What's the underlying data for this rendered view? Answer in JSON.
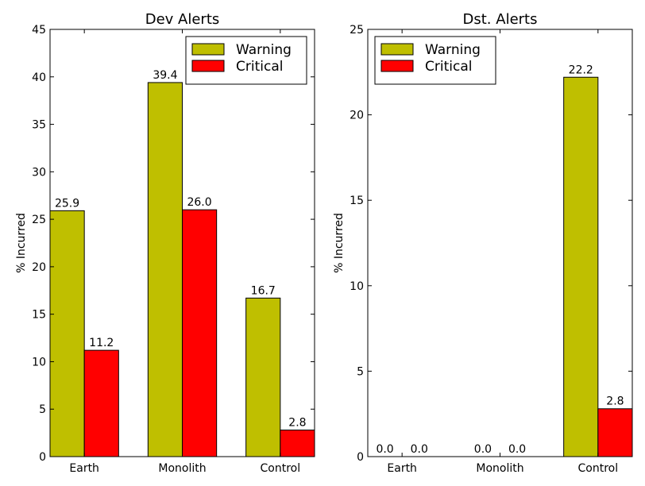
{
  "chart_data": [
    {
      "type": "bar",
      "title": "Dev Alerts",
      "xlabel": "",
      "ylabel": "% Incurred",
      "categories": [
        "Earth",
        "Monolith",
        "Control"
      ],
      "series": [
        {
          "name": "Warning",
          "color": "#bfbf00",
          "values": [
            25.9,
            39.4,
            16.7
          ],
          "labels": [
            "25.9",
            "39.4",
            "16.7"
          ]
        },
        {
          "name": "Critical",
          "color": "#ff0000",
          "values": [
            11.2,
            26.0,
            2.8
          ],
          "labels": [
            "11.2",
            "26.0",
            "2.8"
          ]
        }
      ],
      "ylim": [
        0,
        45
      ],
      "yticks": [
        0,
        5,
        10,
        15,
        20,
        25,
        30,
        35,
        40,
        45
      ],
      "legend": "top-right",
      "grid": false
    },
    {
      "type": "bar",
      "title": "Dst. Alerts",
      "xlabel": "",
      "ylabel": "% Incurred",
      "categories": [
        "Earth",
        "Monolith",
        "Control"
      ],
      "series": [
        {
          "name": "Warning",
          "color": "#bfbf00",
          "values": [
            0.0,
            0.0,
            22.2
          ],
          "labels": [
            "0.0",
            "0.0",
            "22.2"
          ]
        },
        {
          "name": "Critical",
          "color": "#ff0000",
          "values": [
            0.0,
            0.0,
            2.8
          ],
          "labels": [
            "0.0",
            "0.0",
            "2.8"
          ]
        }
      ],
      "ylim": [
        0,
        25
      ],
      "yticks": [
        0,
        5,
        10,
        15,
        20,
        25
      ],
      "legend": "top-left",
      "grid": false
    }
  ]
}
